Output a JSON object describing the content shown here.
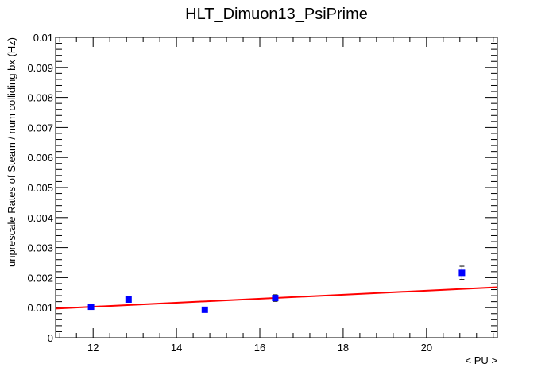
{
  "chart_data": {
    "type": "scatter",
    "title": "HLT_Dimuon13_PsiPrime",
    "xlabel": "< PU >",
    "ylabel": "unprescale Rates of Steam / num colliding bx (Hz)",
    "xlim": [
      11.1,
      21.7
    ],
    "ylim": [
      0,
      0.01
    ],
    "x_ticks": [
      12,
      14,
      16,
      18,
      20
    ],
    "y_ticks": [
      0,
      0.001,
      0.002,
      0.003,
      0.004,
      0.005,
      0.006,
      0.007,
      0.008,
      0.009,
      0.01
    ],
    "x_tick_labels": [
      "12",
      "14",
      "16",
      "18",
      "20"
    ],
    "y_tick_labels": [
      "0",
      "0.001",
      "0.002",
      "0.003",
      "0.004",
      "0.005",
      "0.006",
      "0.007",
      "0.008",
      "0.009",
      "0.01"
    ],
    "grid": false,
    "series": [
      {
        "marker": "square",
        "color": "#0000ff",
        "points": [
          {
            "x": 11.95,
            "y": 0.00103,
            "err": 6e-05
          },
          {
            "x": 12.85,
            "y": 0.00127,
            "err": 8e-05
          },
          {
            "x": 14.68,
            "y": 0.00093,
            "err": 4e-05
          },
          {
            "x": 16.37,
            "y": 0.00132,
            "err": 0.00011
          },
          {
            "x": 20.85,
            "y": 0.00216,
            "err": 0.00022
          }
        ]
      }
    ],
    "fit": {
      "type": "linear",
      "color": "#ff0000",
      "x": [
        11.1,
        21.7
      ],
      "y": [
        0.00097,
        0.00168
      ]
    }
  }
}
